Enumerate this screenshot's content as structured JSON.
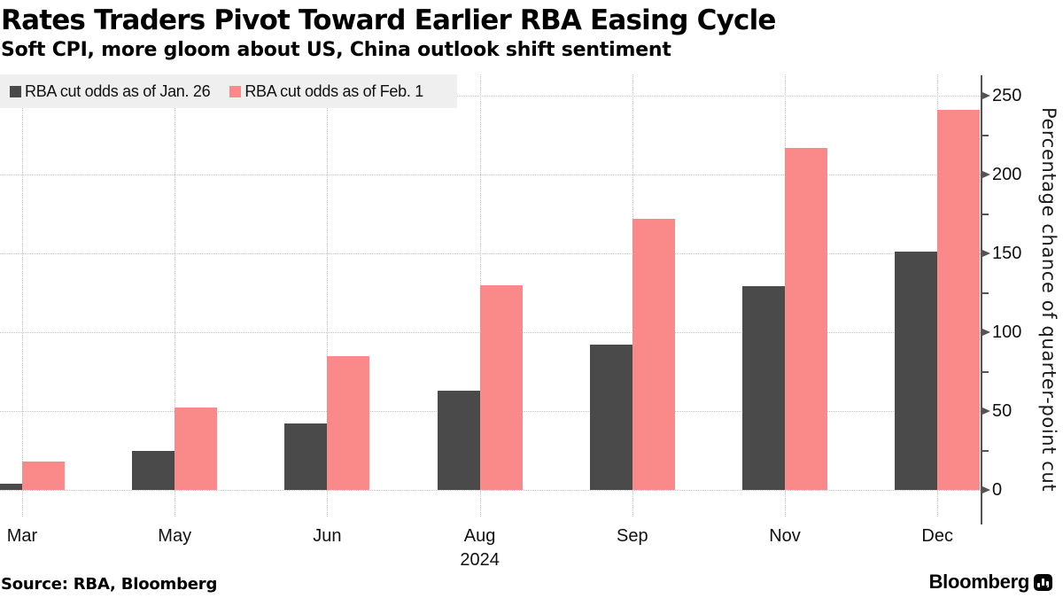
{
  "header": {
    "title": "Rates Traders Pivot Toward Earlier RBA Easing Cycle",
    "subtitle": "Soft CPI, more gloom about US, China outlook shift sentiment"
  },
  "legend": {
    "items": [
      {
        "label": "RBA cut odds as of Jan. 26",
        "color": "#4a4a4a"
      },
      {
        "label": "RBA cut odds as of Feb. 1",
        "color": "#fa8a8a"
      }
    ]
  },
  "chart_data": {
    "type": "bar",
    "title": "Rates Traders Pivot Toward Earlier RBA Easing Cycle",
    "subtitle": "Soft CPI, more gloom about US, China outlook shift sentiment",
    "categories": [
      "Mar",
      "May",
      "Jun",
      "Aug",
      "Sep",
      "Nov",
      "Dec"
    ],
    "x_axis_year": "2024",
    "series": [
      {
        "name": "RBA cut odds as of Jan. 26",
        "color": "#4a4a4a",
        "values": [
          4,
          25,
          42,
          63,
          92,
          129,
          151
        ]
      },
      {
        "name": "RBA cut odds as of Feb. 1",
        "color": "#fa8a8a",
        "values": [
          18,
          52,
          85,
          130,
          172,
          217,
          241
        ]
      }
    ],
    "xlabel": "",
    "ylabel": "Percentage chance of quarter-point cut",
    "ylim": [
      0,
      250
    ],
    "yticks": [
      0,
      50,
      100,
      150,
      200,
      250
    ],
    "minor_yticks": [
      25,
      75,
      125,
      175,
      225
    ],
    "grid": "dotted",
    "legend_position": "top-left",
    "y_axis_side": "right"
  },
  "footer": {
    "source": "Source: RBA, Bloomberg",
    "brand": "Bloomberg"
  },
  "colors": {
    "series_dark": "#4a4a4a",
    "series_pink": "#fa8a8a",
    "grid": "#c6c6c6",
    "axis": "#545454",
    "legend_bg": "#efefef"
  }
}
